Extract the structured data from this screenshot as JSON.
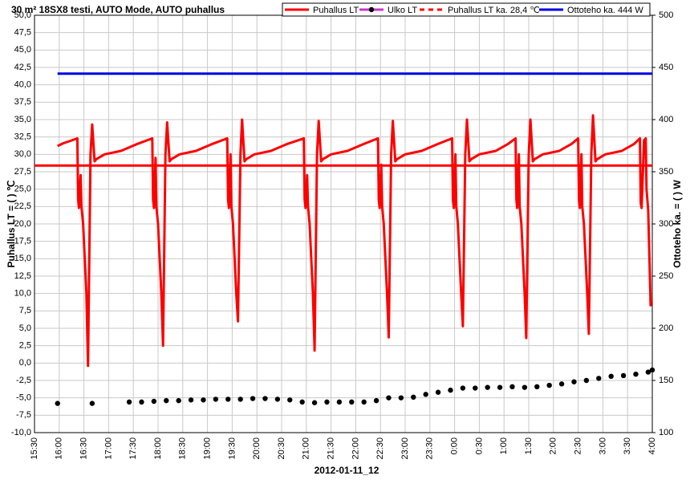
{
  "chart_data": {
    "type": "line",
    "title": "30 m² 18SX8  testi, AUTO Mode, AUTO puhallus",
    "x_label": "2012-01-11_12",
    "y_label": "Puhallus LT = ( ) ℃",
    "y2_label": "Ottoteho ka. = ( ) W",
    "legend": "top",
    "grid": true,
    "xlim": [
      "15:30",
      "4:00"
    ],
    "xticks": [
      "15:30",
      "16:00",
      "16:30",
      "17:00",
      "17:30",
      "18:00",
      "18:30",
      "19:00",
      "19:30",
      "20:00",
      "20:30",
      "21:00",
      "21:30",
      "22:00",
      "22:30",
      "23:00",
      "23:30",
      "0:00",
      "0:30",
      "1:00",
      "1:30",
      "2:00",
      "2:30",
      "3:00",
      "3:30",
      "4:00"
    ],
    "ylim": [
      -10,
      50
    ],
    "yticks": [
      {
        "value": 50,
        "label": "50,0"
      },
      {
        "value": 47.5,
        "label": "47,5"
      },
      {
        "value": 45,
        "label": "45,0"
      },
      {
        "value": 42.5,
        "label": "42,5"
      },
      {
        "value": 40,
        "label": "40,0"
      },
      {
        "value": 37.5,
        "label": "37,5"
      },
      {
        "value": 35,
        "label": "35,0"
      },
      {
        "value": 32.5,
        "label": "32,5"
      },
      {
        "value": 30,
        "label": "30,0"
      },
      {
        "value": 27.5,
        "label": "27,5"
      },
      {
        "value": 25,
        "label": "25,0"
      },
      {
        "value": 22.5,
        "label": "22,5"
      },
      {
        "value": 20,
        "label": "20,0"
      },
      {
        "value": 17.5,
        "label": "17,5"
      },
      {
        "value": 15,
        "label": "15,0"
      },
      {
        "value": 12.5,
        "label": "12,5"
      },
      {
        "value": 10,
        "label": "10,0"
      },
      {
        "value": 7.5,
        "label": "7,5"
      },
      {
        "value": 5,
        "label": "5,0"
      },
      {
        "value": 2.5,
        "label": "2,5"
      },
      {
        "value": 0,
        "label": "0,0"
      },
      {
        "value": -2.5,
        "label": "-2,5"
      },
      {
        "value": -5,
        "label": "-5,0"
      },
      {
        "value": -7.5,
        "label": "-7,5"
      },
      {
        "value": -10,
        "label": "-10,0"
      }
    ],
    "y2lim": [
      100,
      500
    ],
    "y2ticks": [
      100,
      150,
      200,
      250,
      300,
      350,
      400,
      450,
      500
    ],
    "series": [
      {
        "name": "Puhallus LT",
        "color": "#ff0000",
        "x": [
          "15:58",
          "16:05",
          "16:15",
          "16:22",
          "16:23",
          "16:24",
          "16:26",
          "16:27",
          "16:29",
          "16:33",
          "16:35",
          "16:38",
          "16:40",
          "16:43",
          "16:45",
          "16:55",
          "17:15",
          "17:35",
          "17:53",
          "17:54",
          "17:55",
          "17:57",
          "17:58",
          "18:00",
          "18:04",
          "18:06",
          "18:09",
          "18:11",
          "18:14",
          "18:16",
          "18:26",
          "18:46",
          "19:06",
          "19:24",
          "19:25",
          "19:26",
          "19:28",
          "19:29",
          "19:31",
          "19:35",
          "19:37",
          "19:40",
          "19:42",
          "19:45",
          "19:47",
          "19:57",
          "20:17",
          "20:37",
          "20:57",
          "20:58",
          "20:59",
          "21:01",
          "21:02",
          "21:04",
          "21:08",
          "21:10",
          "21:13",
          "21:15",
          "21:18",
          "21:20",
          "21:30",
          "21:50",
          "22:10",
          "22:27",
          "22:28",
          "22:29",
          "22:31",
          "22:32",
          "22:34",
          "22:38",
          "22:40",
          "22:43",
          "22:45",
          "22:48",
          "22:50",
          "23:00",
          "23:20",
          "23:40",
          "23:57",
          "23:58",
          "23:59",
          "0:01",
          "0:02",
          "0:04",
          "0:08",
          "0:10",
          "0:13",
          "0:15",
          "0:18",
          "0:20",
          "0:30",
          "0:50",
          "1:05",
          "1:14",
          "1:15",
          "1:16",
          "1:18",
          "1:19",
          "1:21",
          "1:25",
          "1:27",
          "1:30",
          "1:32",
          "1:35",
          "1:37",
          "1:47",
          "2:07",
          "2:22",
          "2:30",
          "2:31",
          "2:32",
          "2:34",
          "2:35",
          "2:37",
          "2:41",
          "2:43",
          "2:46",
          "2:48",
          "2:51",
          "2:53",
          "3:03",
          "3:23",
          "3:38",
          "3:45",
          "3:46",
          "3:47",
          "3:50",
          "3:52",
          "3:53",
          "3:55",
          "3:57",
          "3:58",
          "3:59"
        ],
        "values": [
          31.2,
          31.6,
          32.0,
          32.3,
          23.5,
          22.3,
          27,
          22.5,
          20,
          10,
          -0.4,
          30,
          34.3,
          29,
          29.3,
          30,
          30.5,
          31.5,
          32.3,
          23.5,
          22.3,
          29.5,
          22.5,
          20,
          10,
          2.5,
          30,
          34.6,
          29,
          29.3,
          30,
          30.5,
          31.5,
          32.3,
          23.5,
          22.3,
          30,
          22.5,
          20,
          10,
          6,
          30,
          35,
          29,
          29.3,
          30,
          30.5,
          31.5,
          32.3,
          23.5,
          22.3,
          27,
          22.5,
          20,
          10,
          1.8,
          30,
          34.8,
          29,
          29.3,
          30,
          30.5,
          31.5,
          32.3,
          23.5,
          22.3,
          28.5,
          22.5,
          20,
          10,
          3.7,
          30,
          34.8,
          29,
          29.3,
          30,
          30.5,
          31.5,
          32.3,
          23.5,
          22.3,
          30,
          22.5,
          20,
          10,
          5.3,
          30,
          35,
          29,
          29.3,
          30,
          30.5,
          31.5,
          32.3,
          23.5,
          22.3,
          30,
          22.5,
          20,
          10,
          3.6,
          30,
          35,
          29,
          29.3,
          30,
          30.5,
          31.5,
          32.3,
          23.5,
          22.3,
          30,
          22.5,
          20,
          10,
          4.2,
          30,
          35.6,
          29,
          29.3,
          30,
          30.5,
          31.5,
          32.3,
          23,
          22.3,
          32,
          32.3,
          25,
          22,
          13,
          8.3,
          9.2
        ]
      },
      {
        "name": "Ulko LT",
        "color": "#cc33cc",
        "marker_color": "#000000",
        "line": false,
        "x": [
          "15:58",
          "16:40",
          "17:25",
          "17:40",
          "17:55",
          "18:10",
          "18:25",
          "18:40",
          "18:55",
          "19:10",
          "19:25",
          "19:40",
          "19:55",
          "20:10",
          "20:25",
          "20:40",
          "20:55",
          "21:10",
          "21:25",
          "21:40",
          "21:55",
          "22:10",
          "22:25",
          "22:40",
          "22:55",
          "23:10",
          "23:25",
          "23:40",
          "23:55",
          "0:10",
          "0:25",
          "0:40",
          "0:55",
          "1:10",
          "1:25",
          "1:40",
          "1:55",
          "2:10",
          "2:25",
          "2:40",
          "2:55",
          "3:10",
          "3:25",
          "3:40",
          "3:55",
          "4:00"
        ],
        "values": [
          -5.8,
          -5.8,
          -5.6,
          -5.6,
          -5.5,
          -5.4,
          -5.4,
          -5.3,
          -5.3,
          -5.2,
          -5.2,
          -5.2,
          -5.1,
          -5.1,
          -5.2,
          -5.3,
          -5.6,
          -5.7,
          -5.6,
          -5.6,
          -5.6,
          -5.6,
          -5.4,
          -5.0,
          -5.0,
          -4.9,
          -4.5,
          -4.2,
          -3.9,
          -3.6,
          -3.6,
          -3.5,
          -3.5,
          -3.4,
          -3.5,
          -3.4,
          -3.2,
          -3.0,
          -2.7,
          -2.5,
          -2.2,
          -1.9,
          -1.8,
          -1.6,
          -1.3,
          -1.0
        ]
      },
      {
        "name": "Puhallus LT ka. 28,4 ℃",
        "color": "#ff0000",
        "dash": true,
        "value": 28.4
      },
      {
        "name": "Ottoteho ka. 444 W",
        "color": "#0000dd",
        "axis": "y2",
        "value": 444,
        "x": [
          "15:58",
          "4:00"
        ]
      }
    ]
  }
}
